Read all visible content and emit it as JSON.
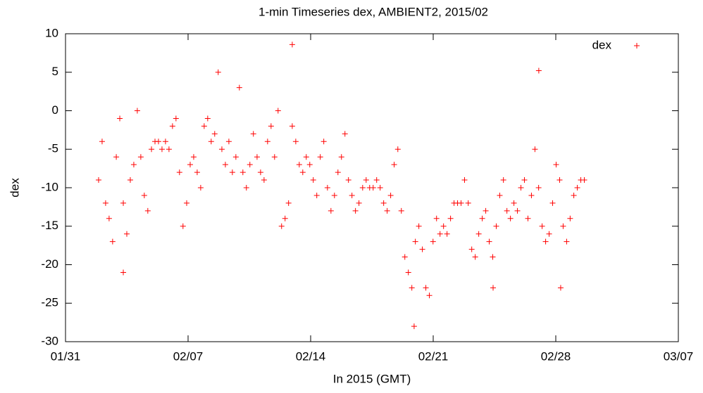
{
  "chart_data": {
    "type": "scatter",
    "title": "1-min Timeseries dex, AMBIENT2, 2015/02",
    "x_label": "In 2015 (GMT)",
    "y_label": "dex",
    "xlim": [
      31,
      66
    ],
    "xticks": [
      {
        "value": 31,
        "label": "01/31"
      },
      {
        "value": 38,
        "label": "02/07"
      },
      {
        "value": 45,
        "label": "02/14"
      },
      {
        "value": 52,
        "label": "02/21"
      },
      {
        "value": 59,
        "label": "02/28"
      },
      {
        "value": 66,
        "label": "03/07"
      }
    ],
    "ylim": [
      -30,
      10
    ],
    "yticks": [
      -30,
      -25,
      -20,
      -15,
      -10,
      -5,
      0,
      5,
      10
    ],
    "legend": "top-right",
    "series": [
      {
        "name": "dex",
        "color": "#ff0000",
        "x": [
          32.89,
          33.09,
          33.29,
          33.49,
          33.69,
          33.9,
          34.1,
          34.3,
          34.5,
          34.7,
          34.9,
          35.1,
          35.3,
          35.5,
          35.7,
          35.91,
          36.11,
          36.31,
          36.51,
          36.71,
          36.91,
          37.11,
          37.31,
          37.51,
          37.71,
          37.92,
          38.12,
          38.32,
          38.52,
          38.72,
          38.92,
          39.12,
          39.32,
          39.52,
          39.72,
          39.93,
          40.13,
          40.33,
          40.53,
          40.73,
          40.93,
          41.13,
          41.33,
          41.53,
          41.73,
          41.94,
          42.14,
          42.34,
          42.54,
          42.74,
          42.94,
          43.14,
          43.34,
          43.54,
          43.74,
          43.95,
          44.15,
          44.35,
          44.55,
          44.75,
          44.95,
          45.15,
          45.35,
          45.55,
          45.75,
          45.96,
          46.16,
          46.36,
          46.56,
          46.76,
          46.96,
          47.16,
          47.36,
          47.56,
          47.76,
          47.97,
          48.17,
          48.37,
          48.57,
          48.77,
          48.97,
          49.17,
          49.37,
          49.57,
          49.77,
          49.98,
          50.18,
          50.38,
          50.58,
          50.78,
          50.98,
          51.18,
          51.38,
          51.58,
          51.78,
          51.99,
          52.19,
          52.39,
          52.59,
          52.79,
          52.99,
          53.19,
          53.39,
          53.59,
          53.79,
          54.0,
          54.2,
          54.4,
          54.6,
          54.8,
          55.0,
          55.2,
          55.4,
          55.6,
          55.8,
          56.01,
          56.21,
          56.41,
          56.61,
          56.81,
          57.01,
          57.21,
          57.41,
          57.61,
          57.81,
          58.02,
          58.22,
          58.42,
          58.62,
          58.82,
          59.02,
          59.22,
          59.42,
          59.62,
          59.82,
          60.03,
          60.23,
          60.43,
          60.63,
          43.95,
          58.03,
          34.3,
          50.91,
          55.42,
          59.28
        ],
        "values": [
          -9,
          -4,
          -12,
          -14,
          -17,
          -6,
          -1,
          -12,
          -16,
          -9,
          -7,
          0,
          -6,
          -11,
          -13,
          -5,
          -4,
          -4,
          -5,
          -4,
          -5,
          -2,
          -1,
          -8,
          -15,
          -12,
          -7,
          -6,
          -8,
          -10,
          -2,
          -1,
          -4,
          -3,
          5,
          -5,
          -7,
          -4,
          -8,
          -6,
          3,
          -8,
          -10,
          -7,
          -3,
          -6,
          -8,
          -9,
          -4,
          -2,
          -6,
          0,
          -15,
          -14,
          -12,
          -2,
          -4,
          -7,
          -8,
          -6,
          -7,
          -9,
          -11,
          -6,
          -4,
          -10,
          -13,
          -11,
          -8,
          -6,
          -3,
          -9,
          -11,
          -13,
          -12,
          -10,
          -9,
          -10,
          -10,
          -9,
          -10,
          -12,
          -13,
          -11,
          -7,
          -5,
          -13,
          -19,
          -21,
          -23,
          -17,
          -15,
          -18,
          -23,
          -24,
          -17,
          -14,
          -16,
          -15,
          -16,
          -14,
          -12,
          -12,
          -12,
          -9,
          -12,
          -18,
          -19,
          -16,
          -14,
          -13,
          -17,
          -19,
          -15,
          -11,
          -9,
          -13,
          -14,
          -12,
          -13,
          -10,
          -9,
          -14,
          -11,
          -5,
          -10,
          -15,
          -17,
          -16,
          -12,
          -7,
          -9,
          -15,
          -17,
          -14,
          -11,
          -10,
          -9,
          -9,
          8.6,
          5.2,
          -21,
          -28,
          -23,
          -23
        ]
      }
    ]
  }
}
